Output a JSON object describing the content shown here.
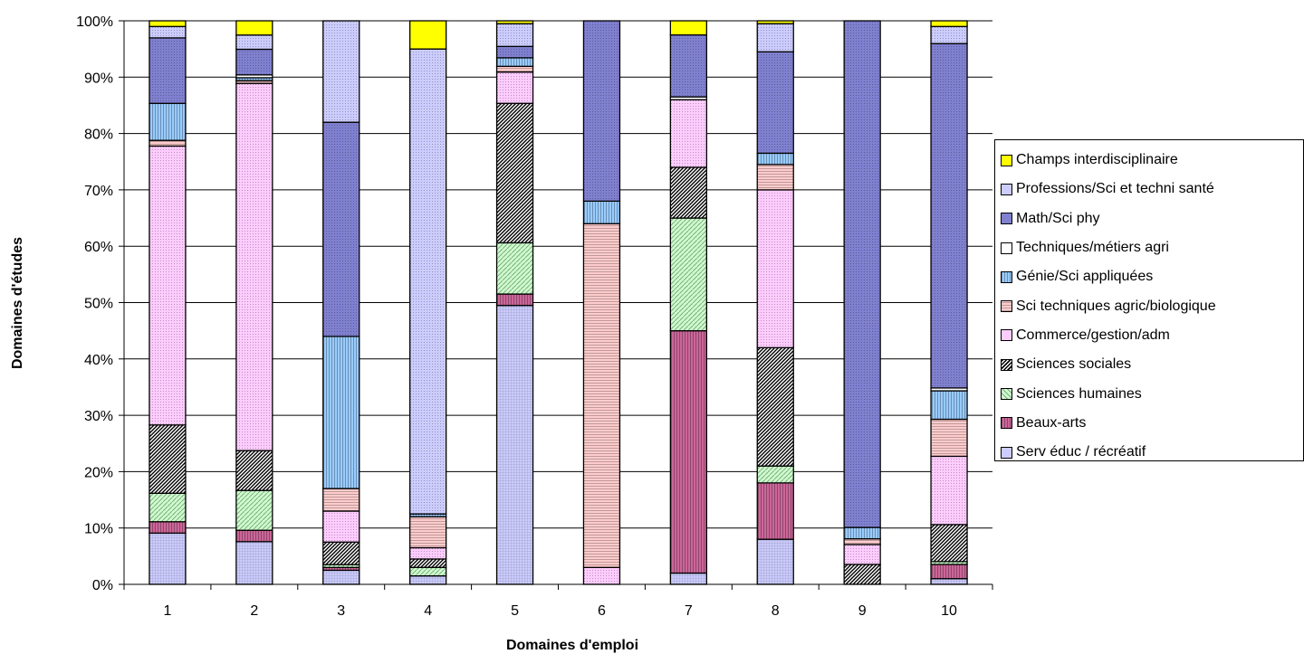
{
  "chart_data": {
    "type": "bar",
    "stacked": true,
    "percent": true,
    "xlabel": "Domaines d'emploi",
    "ylabel": "Domaines d'études",
    "ylim": [
      0,
      100
    ],
    "yticks": [
      "0%",
      "10%",
      "20%",
      "30%",
      "40%",
      "50%",
      "60%",
      "70%",
      "80%",
      "90%",
      "100%"
    ],
    "grid": true,
    "legend_position": "right",
    "categories": [
      "1",
      "2",
      "3",
      "4",
      "5",
      "6",
      "7",
      "8",
      "9",
      "10"
    ],
    "series": [
      {
        "name": "Serv éduc / récréatif",
        "color": "#ccccff",
        "pattern": "grid",
        "values": [
          9,
          7.5,
          2.5,
          1.5,
          49,
          0,
          2,
          8,
          0,
          1
        ]
      },
      {
        "name": "Beaux-arts",
        "color": "#cc6699",
        "pattern": "vlines",
        "values": [
          2,
          2,
          0.5,
          0,
          2,
          0,
          43,
          10,
          0,
          2.5
        ]
      },
      {
        "name": "Sciences humaines",
        "color": "#ccffcc",
        "pattern": "hatch-light",
        "values": [
          5,
          7,
          0.5,
          1.5,
          9,
          0,
          20,
          3,
          0,
          0.5
        ]
      },
      {
        "name": "Sciences sociales",
        "color": "#888888",
        "pattern": "hatch-dense",
        "values": [
          12,
          7,
          4,
          1.5,
          24.5,
          0,
          9,
          21,
          3.5,
          6.5
        ]
      },
      {
        "name": "Commerce/gestion/adm",
        "color": "#ffccff",
        "pattern": "dots",
        "values": [
          49,
          64.5,
          5.5,
          2,
          5.5,
          3,
          12,
          28,
          3.5,
          12
        ]
      },
      {
        "name": "Sci techniques agric/biologique",
        "color": "#ffcccc",
        "pattern": "hlines",
        "values": [
          1,
          0.5,
          4,
          5.5,
          1,
          61,
          0,
          4.5,
          1,
          6.5
        ]
      },
      {
        "name": "Génie/Sci appliquées",
        "color": "#99ccff",
        "pattern": "vlines",
        "values": [
          6.5,
          0.5,
          27,
          0.5,
          1.5,
          4,
          0,
          2,
          2,
          5
        ]
      },
      {
        "name": "Techniques/métiers agri",
        "color": "#ffffff",
        "pattern": "none",
        "values": [
          0,
          0.5,
          0,
          0,
          0,
          0,
          0.5,
          0,
          0,
          0.5
        ]
      },
      {
        "name": "Math/Sci phy",
        "color": "#8080d0",
        "pattern": "dots",
        "values": [
          11.5,
          4.5,
          38,
          0,
          2,
          32,
          11,
          18,
          89,
          60.5
        ]
      },
      {
        "name": "Professions/Sci et techni santé",
        "color": "#ccccff",
        "pattern": "dots",
        "values": [
          2,
          2.5,
          18,
          82.5,
          4,
          0,
          0,
          5,
          0,
          3
        ]
      },
      {
        "name": "Champs interdisciplinaire",
        "color": "#ffff00",
        "pattern": "none",
        "values": [
          1,
          2.5,
          0,
          5,
          0.5,
          0,
          2.5,
          0.5,
          0,
          1
        ]
      }
    ]
  }
}
